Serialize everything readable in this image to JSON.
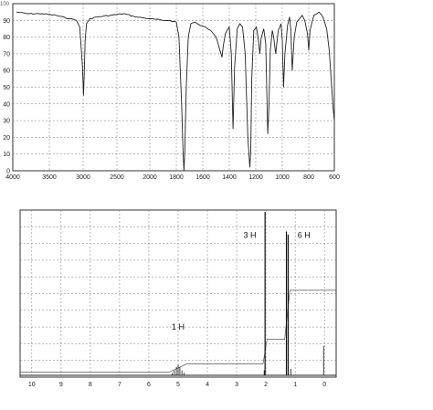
{
  "chart_data": [
    {
      "type": "line",
      "title": "",
      "xlabel": "",
      "ylabel": "",
      "x_ticks": [
        4000,
        3500,
        3000,
        2500,
        2000,
        1800,
        1600,
        1400,
        1200,
        1000,
        800,
        600
      ],
      "y_ticks": [
        0,
        10,
        20,
        30,
        40,
        50,
        60,
        70,
        80,
        90,
        100
      ],
      "y_top_label": "100",
      "ylim": [
        0,
        100
      ],
      "grid": true,
      "series": [
        {
          "x": [
            3950,
            3800,
            3600,
            3400,
            3200,
            3100,
            3050,
            3010,
            2995,
            2985,
            2970,
            2950,
            2900,
            2800,
            2600,
            2400,
            2200,
            2000,
            1900,
            1850,
            1800,
            1780,
            1760,
            1748,
            1742,
            1736,
            1725,
            1710,
            1690,
            1660,
            1620,
            1580,
            1540,
            1500,
            1470,
            1455,
            1445,
            1430,
            1400,
            1385,
            1372,
            1360,
            1340,
            1320,
            1300,
            1280,
            1260,
            1245,
            1238,
            1230,
            1215,
            1195,
            1180,
            1170,
            1160,
            1140,
            1125,
            1110,
            1100,
            1090,
            1075,
            1065,
            1050,
            1030,
            1010,
            1000,
            990,
            980,
            960,
            945,
            935,
            925,
            910,
            890,
            870,
            850,
            830,
            810,
            800,
            790,
            760,
            720,
            690,
            660,
            640,
            625,
            610,
            600
          ],
          "y": [
            95,
            94,
            94,
            93,
            91,
            90,
            86,
            62,
            45,
            56,
            78,
            88,
            91,
            92,
            93,
            94,
            92,
            91,
            90,
            90,
            89,
            80,
            40,
            10,
            0,
            12,
            50,
            80,
            88,
            89,
            87,
            86,
            84,
            80,
            72,
            68,
            75,
            82,
            86,
            70,
            25,
            62,
            85,
            88,
            86,
            70,
            20,
            2,
            12,
            55,
            84,
            86,
            78,
            70,
            79,
            85,
            76,
            22,
            40,
            72,
            84,
            80,
            70,
            84,
            88,
            78,
            50,
            70,
            87,
            92,
            84,
            60,
            80,
            89,
            91,
            93,
            90,
            82,
            72,
            84,
            93,
            95,
            92,
            85,
            72,
            55,
            38,
            30
          ]
        }
      ]
    },
    {
      "type": "line",
      "title": "",
      "xlabel": "",
      "ylabel": "",
      "x_ticks": [
        10,
        9,
        8,
        7,
        6,
        5,
        4,
        3,
        2,
        1,
        0
      ],
      "xlim": [
        10.4,
        -0.4
      ],
      "ylim": [
        0,
        100
      ],
      "grid": true,
      "peaks": [
        {
          "ppm": 5.2,
          "height": 1.5
        },
        {
          "ppm": 5.13,
          "height": 3.0
        },
        {
          "ppm": 5.06,
          "height": 5.0
        },
        {
          "ppm": 5.0,
          "height": 6.5
        },
        {
          "ppm": 4.94,
          "height": 5.0
        },
        {
          "ppm": 4.87,
          "height": 3.0
        },
        {
          "ppm": 4.8,
          "height": 1.5
        },
        {
          "ppm": 2.06,
          "height": 3.0
        },
        {
          "ppm": 2.03,
          "height": 100.0
        },
        {
          "ppm": 1.3,
          "height": 88.0
        },
        {
          "ppm": 1.24,
          "height": 86.0
        },
        {
          "ppm": 1.15,
          "height": 4.0
        },
        {
          "ppm": 0.03,
          "height": 18.0
        }
      ],
      "integration_steps": [
        {
          "from_ppm": 5.3,
          "to_ppm": 4.7,
          "rise": 5
        },
        {
          "from_ppm": 2.1,
          "to_ppm": 1.96,
          "rise": 15
        },
        {
          "from_ppm": 1.36,
          "to_ppm": 1.18,
          "rise": 30
        }
      ],
      "annotations": [
        {
          "text": "1 H",
          "ppm": 5.0,
          "level": 28
        },
        {
          "text": "3 H",
          "ppm": 2.55,
          "level": 84
        },
        {
          "text": "6 H",
          "ppm": 0.7,
          "level": 84
        }
      ]
    }
  ]
}
